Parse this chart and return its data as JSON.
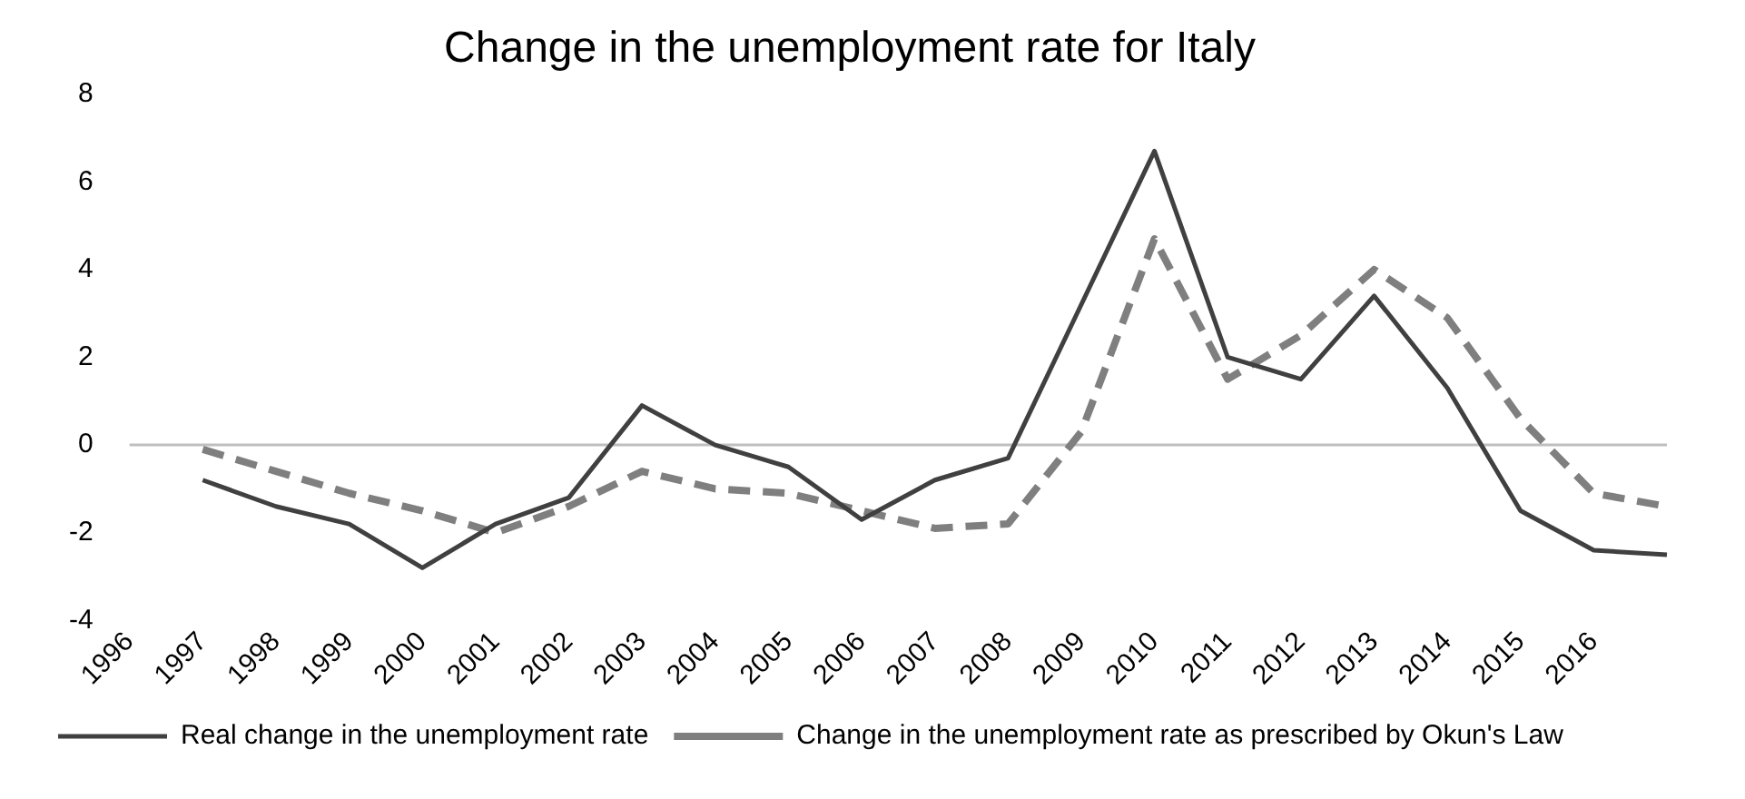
{
  "chart_data": {
    "type": "line",
    "title": "Change in the unemployment rate for Italy",
    "categories": [
      "1996",
      "1997",
      "1998",
      "1999",
      "2000",
      "2001",
      "2002",
      "2003",
      "2004",
      "2005",
      "2006",
      "2007",
      "2008",
      "2009",
      "2010",
      "2011",
      "2012",
      "2013",
      "2014",
      "2015",
      "2016",
      null
    ],
    "series": [
      {
        "name": "Real change in the unemployment rate",
        "color": "#404040",
        "line_style": "solid",
        "values": [
          null,
          -0.8,
          -1.4,
          -1.8,
          -2.8,
          -1.8,
          -1.2,
          0.9,
          0,
          -0.5,
          -1.7,
          -0.8,
          -0.3,
          3.2,
          6.7,
          2.0,
          1.5,
          3.4,
          1.3,
          -1.5,
          -2.4,
          -2.5
        ]
      },
      {
        "name": "Change in the unemployment rate as prescribed by Okun's Law",
        "color": "#7f7f7f",
        "line_style": "dashed",
        "values": [
          null,
          -0.1,
          -0.6,
          -1.1,
          -1.5,
          -2.0,
          -1.4,
          -0.6,
          -1.0,
          -1.1,
          -1.5,
          -1.9,
          -1.8,
          0.3,
          4.7,
          1.5,
          2.5,
          4.0,
          2.9,
          0.6,
          -1.1,
          -1.4
        ]
      }
    ],
    "ylim": [
      -4,
      8
    ],
    "yticks": [
      -4,
      -2,
      0,
      2,
      4,
      6,
      8
    ],
    "ref_lines": [
      {
        "axis": "y",
        "value": 0,
        "color": "#bfbfbf"
      }
    ],
    "grid": false,
    "legend": "bottom left",
    "marker": "none"
  }
}
